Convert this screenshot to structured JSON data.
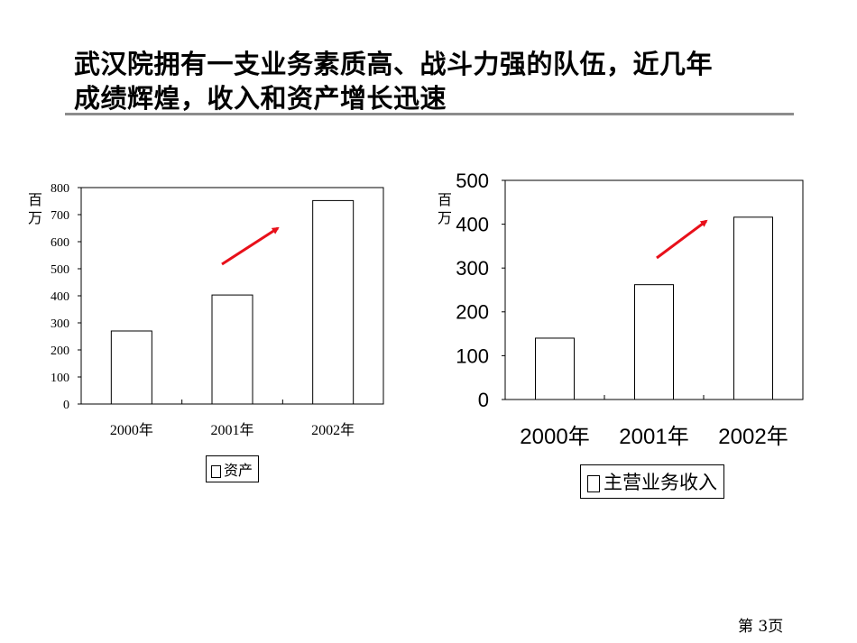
{
  "slide": {
    "title_line1": "武汉院拥有一支业务素质高、战斗力强的队伍，近几年",
    "title_line2": "成绩辉煌，收入和资产增长迅速",
    "page_number": "第 3页",
    "arrow_color": "#e8101a"
  },
  "chart_data": [
    {
      "type": "bar",
      "categories": [
        "2000年",
        "2001年",
        "2002年"
      ],
      "series": [
        {
          "name": "资产",
          "values": [
            270,
            403,
            752
          ]
        }
      ],
      "ylim": [
        0,
        800
      ],
      "yticks": [
        "0",
        "100",
        "200",
        "300",
        "400",
        "500",
        "600",
        "700",
        "800"
      ],
      "ylabel": "百万",
      "ylabel_chars": [
        "百",
        "万"
      ],
      "legend": "资产",
      "legend_position": "bottom"
    },
    {
      "type": "bar",
      "categories": [
        "2000年",
        "2001年",
        "2002年"
      ],
      "series": [
        {
          "name": "主营业务收入",
          "values": [
            140,
            262,
            416
          ]
        }
      ],
      "ylim": [
        0,
        500
      ],
      "yticks": [
        "0",
        "100",
        "200",
        "300",
        "400",
        "500"
      ],
      "ylabel": "百万",
      "ylabel_chars": [
        "百",
        "万"
      ],
      "legend": "主营业务收入",
      "legend_position": "bottom"
    }
  ]
}
